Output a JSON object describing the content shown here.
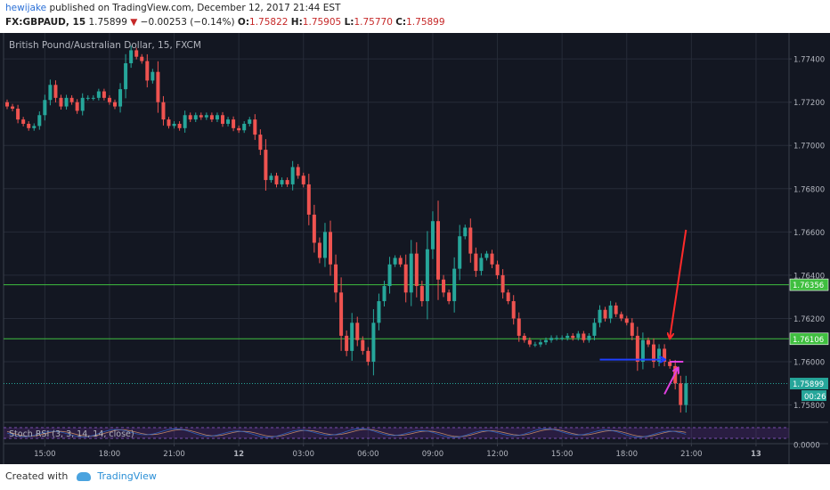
{
  "header": {
    "user": "hewijake",
    "published_text": "published on TradingView.com, December 12, 2017 21:44 EST",
    "symbol": "FX:GBPAUD, 15",
    "last": "1.75899",
    "arrow": "▼",
    "change": "−0.00253 (−0.14%)",
    "o_label": "O:",
    "o_value": "1.75822",
    "h_label": "H:",
    "h_value": "1.75905",
    "l_label": "L:",
    "l_value": "1.75770",
    "c_label": "C:",
    "c_value": "1.75899"
  },
  "footer": {
    "created_with": "Created with",
    "brand": "TradingView"
  },
  "chart_data": {
    "type": "candlestick",
    "title": "British Pound/Australian Dollar, 15, FXCM",
    "y_ticks": [
      "1.77400",
      "1.77200",
      "1.77000",
      "1.76800",
      "1.76600",
      "1.76400",
      "1.76200",
      "1.76000",
      "1.75800"
    ],
    "y_tick_values": [
      1.774,
      1.772,
      1.77,
      1.768,
      1.766,
      1.764,
      1.762,
      1.76,
      1.758
    ],
    "ylim": [
      1.7572,
      1.7752
    ],
    "x_ticks": [
      {
        "label": "15:00",
        "i": 7
      },
      {
        "label": "18:00",
        "i": 19
      },
      {
        "label": "21:00",
        "i": 31
      },
      {
        "label": "12",
        "i": 43
      },
      {
        "label": "03:00",
        "i": 55
      },
      {
        "label": "06:00",
        "i": 67
      },
      {
        "label": "09:00",
        "i": 79
      },
      {
        "label": "12:00",
        "i": 91
      },
      {
        "label": "15:00",
        "i": 103
      },
      {
        "label": "18:00",
        "i": 115
      },
      {
        "label": "21:00",
        "i": 127
      },
      {
        "label": "13",
        "i": 139
      }
    ],
    "horizontal_lines": [
      {
        "value": 1.76356,
        "label": "1.76356",
        "color": "#3fbf3f",
        "style": "solid"
      },
      {
        "value": 1.76106,
        "label": "1.76106",
        "color": "#3fbf3f",
        "style": "solid"
      },
      {
        "value": 1.75899,
        "label": "1.75899",
        "color": "#26a69a",
        "style": "dotted"
      }
    ],
    "countdown": "00:26",
    "closes": [
      1.7718,
      1.7717,
      1.7712,
      1.771,
      1.7708,
      1.7709,
      1.7714,
      1.7721,
      1.7728,
      1.7722,
      1.7718,
      1.7722,
      1.772,
      1.7716,
      1.7722,
      1.7722,
      1.7722,
      1.7725,
      1.7722,
      1.772,
      1.7718,
      1.7726,
      1.7738,
      1.7744,
      1.7741,
      1.7739,
      1.773,
      1.7734,
      1.772,
      1.7712,
      1.7709,
      1.771,
      1.7708,
      1.7714,
      1.7712,
      1.7714,
      1.7713,
      1.7714,
      1.7712,
      1.7714,
      1.771,
      1.7712,
      1.7708,
      1.7707,
      1.771,
      1.7712,
      1.7705,
      1.7698,
      1.7684,
      1.7686,
      1.7682,
      1.7684,
      1.7682,
      1.769,
      1.7686,
      1.7682,
      1.7668,
      1.7655,
      1.7648,
      1.766,
      1.7645,
      1.7632,
      1.7612,
      1.7605,
      1.7618,
      1.761,
      1.7605,
      1.76,
      1.7618,
      1.7628,
      1.7635,
      1.7645,
      1.7648,
      1.7645,
      1.7632,
      1.765,
      1.7635,
      1.7628,
      1.7652,
      1.7665,
      1.7638,
      1.7632,
      1.7628,
      1.7643,
      1.7658,
      1.7662,
      1.765,
      1.7642,
      1.7648,
      1.765,
      1.7645,
      1.764,
      1.7632,
      1.7628,
      1.762,
      1.7612,
      1.761,
      1.7608,
      1.7608,
      1.7609,
      1.761,
      1.7611,
      1.7611,
      1.7611,
      1.7612,
      1.7611,
      1.7613,
      1.761,
      1.7612,
      1.7618,
      1.7624,
      1.762,
      1.7626,
      1.7622,
      1.762,
      1.7618,
      1.7612,
      1.76,
      1.761,
      1.7608,
      1.76,
      1.7606,
      1.76,
      1.7598,
      1.759,
      1.758,
      1.759
    ],
    "indicator": {
      "name": "Stoch RSI (3, 3, 14, 14, close)",
      "y_tick": "0.0000",
      "colors": {
        "k": "#2a6fd6",
        "d": "#e0a070",
        "band": "#6b2fa0"
      }
    },
    "annotations": [
      {
        "shape": "arrow",
        "color": "#ff2a2a",
        "from": [
          126,
          1.7661
        ],
        "to": [
          123,
          1.7611
        ]
      },
      {
        "shape": "arrow",
        "color": "#1f3fff",
        "from": [
          110,
          1.7601
        ],
        "to": [
          122,
          1.7601
        ]
      },
      {
        "shape": "arrow",
        "color": "#e040e0",
        "from": [
          122,
          1.7585
        ],
        "to": [
          124.5,
          1.7597
        ]
      },
      {
        "shape": "segment",
        "color": "#e040e0",
        "from": [
          123,
          1.76
        ],
        "to": [
          125.5,
          1.76
        ]
      }
    ],
    "colors": {
      "up": "#26a69a",
      "down": "#ef5350",
      "background": "#131722",
      "grid": "#262b38",
      "text": "#b2b5be"
    }
  }
}
